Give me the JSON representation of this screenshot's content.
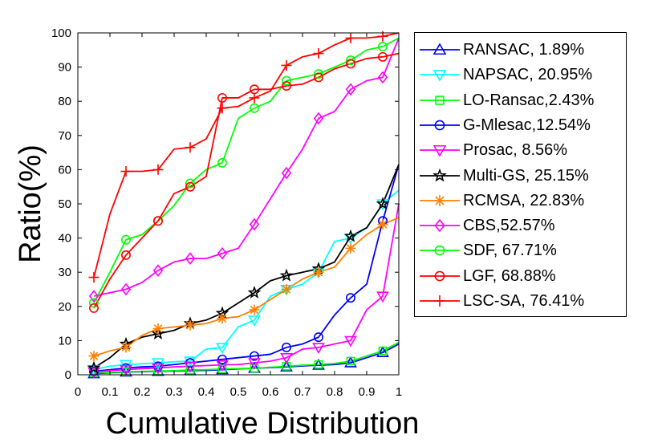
{
  "chart_data": {
    "type": "line",
    "title": "",
    "xlabel": "Cumulative Distribution",
    "ylabel": "Ratio(%)",
    "xlim": [
      0,
      1
    ],
    "ylim": [
      0,
      100
    ],
    "xticks": [
      "0",
      "0.1",
      "0.2",
      "0.3",
      "0.4",
      "0.5",
      "0.6",
      "0.7",
      "0.8",
      "0.9",
      "1"
    ],
    "yticks": [
      "0",
      "10",
      "20",
      "30",
      "40",
      "50",
      "60",
      "70",
      "80",
      "90",
      "100"
    ],
    "grid": false,
    "legend_position": "right-outside",
    "x": [
      0.05,
      0.1,
      0.15,
      0.2,
      0.25,
      0.3,
      0.35,
      0.4,
      0.45,
      0.5,
      0.55,
      0.6,
      0.65,
      0.7,
      0.75,
      0.8,
      0.85,
      0.9,
      0.95,
      1.0
    ],
    "marker_x": [
      0.05,
      0.15,
      0.25,
      0.35,
      0.45,
      0.55,
      0.65,
      0.75,
      0.85,
      0.95
    ],
    "series": [
      {
        "name": "RANSAC, 1.89%",
        "color": "#0000FF",
        "marker": "triangle-up",
        "values": [
          0.3,
          0.6,
          0.8,
          0.9,
          1.0,
          1.1,
          1.2,
          1.3,
          1.5,
          1.7,
          1.9,
          2.1,
          2.3,
          2.6,
          2.8,
          3.0,
          3.5,
          5.0,
          6.5,
          9.0
        ]
      },
      {
        "name": "NAPSAC, 20.95%",
        "color": "#00FFFF",
        "marker": "triangle-down",
        "values": [
          1.5,
          2.5,
          3.0,
          3.2,
          3.5,
          3.8,
          4.0,
          7.5,
          8.0,
          14.0,
          16.0,
          23.0,
          25.0,
          26.5,
          30.0,
          39.0,
          40.0,
          43.0,
          50.0,
          54.0
        ]
      },
      {
        "name": "LO-Ransac,2.43%",
        "color": "#00FF00",
        "marker": "square",
        "values": [
          0.5,
          0.7,
          0.9,
          1.0,
          1.1,
          1.2,
          1.4,
          1.5,
          1.7,
          1.8,
          1.9,
          2.2,
          2.5,
          2.8,
          3.0,
          3.3,
          4.0,
          5.5,
          7.0,
          9.5
        ]
      },
      {
        "name": "G-Mlesac,12.54%",
        "color": "#0000FF",
        "marker": "circle",
        "values": [
          1.0,
          1.5,
          2.0,
          2.3,
          2.5,
          3.0,
          3.5,
          4.0,
          4.5,
          5.0,
          5.5,
          6.0,
          8.0,
          9.0,
          11.0,
          17.5,
          22.5,
          26.5,
          45.0,
          61.5
        ]
      },
      {
        "name": "Prosac, 8.56%",
        "color": "#FF00FF",
        "marker": "triangle-down",
        "values": [
          0.8,
          1.2,
          1.5,
          1.8,
          2.0,
          2.3,
          2.5,
          2.7,
          2.9,
          3.0,
          3.5,
          4.0,
          5.0,
          7.5,
          8.0,
          9.0,
          10.0,
          19.0,
          23.0,
          50.0
        ]
      },
      {
        "name": "Multi-GS, 25.15%",
        "color": "#000000",
        "marker": "star",
        "values": [
          2.0,
          5.0,
          9.0,
          11.0,
          12.0,
          13.0,
          15.0,
          16.0,
          18.0,
          21.0,
          24.0,
          27.5,
          29.0,
          30.0,
          31.0,
          33.0,
          40.5,
          43.0,
          50.0,
          61.5
        ]
      },
      {
        "name": "RCMSA, 22.83%",
        "color": "#FF8000",
        "marker": "asterisk",
        "values": [
          5.5,
          7.0,
          8.0,
          11.5,
          13.5,
          14.0,
          14.5,
          15.0,
          16.5,
          17.0,
          19.0,
          22.0,
          25.0,
          28.0,
          30.0,
          31.5,
          37.0,
          41.0,
          44.0,
          46.0
        ]
      },
      {
        "name": "CBS,52.57%",
        "color": "#FF00FF",
        "marker": "diamond",
        "values": [
          23.0,
          24.0,
          25.0,
          27.0,
          30.5,
          33.0,
          34.0,
          34.0,
          35.5,
          37.0,
          44.0,
          51.5,
          59.0,
          66.0,
          75.0,
          77.0,
          83.5,
          86.0,
          87.0,
          98.5
        ]
      },
      {
        "name": "SDF, 67.71%",
        "color": "#00FF00",
        "marker": "circle",
        "values": [
          21.0,
          30.0,
          39.5,
          41.0,
          45.0,
          49.5,
          56.0,
          60.0,
          62.0,
          75.0,
          78.0,
          80.0,
          86.0,
          87.0,
          88.0,
          90.0,
          92.0,
          95.0,
          96.0,
          98.5
        ]
      },
      {
        "name": "LGF, 68.88%",
        "color": "#FF0000",
        "marker": "circle",
        "values": [
          19.5,
          28.0,
          35.0,
          40.0,
          45.0,
          53.0,
          55.0,
          58.0,
          81.0,
          81.0,
          83.5,
          83.5,
          84.5,
          85.0,
          87.0,
          89.5,
          91.0,
          92.5,
          93.0,
          94.0
        ]
      },
      {
        "name": "LSC-SA, 76.41%",
        "color": "#FF0000",
        "marker": "plus",
        "values": [
          28.5,
          47.0,
          59.5,
          59.5,
          60.0,
          66.0,
          66.5,
          69.0,
          78.0,
          78.5,
          81.0,
          83.0,
          90.5,
          93.0,
          94.0,
          96.5,
          98.5,
          98.5,
          99.0,
          100.0
        ]
      }
    ]
  }
}
